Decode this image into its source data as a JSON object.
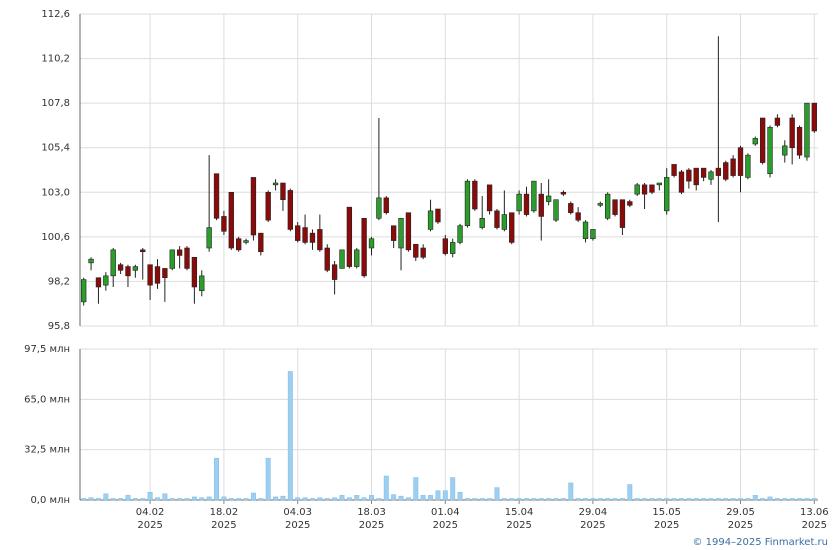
{
  "chart_data": {
    "type": "candlestick",
    "categories": [
      null,
      null,
      null,
      null,
      null,
      null,
      null,
      null,
      null,
      "04.02",
      null,
      null,
      null,
      null,
      null,
      null,
      null,
      null,
      null,
      "18.02",
      null,
      null,
      null,
      null,
      null,
      null,
      null,
      null,
      null,
      "04.03",
      null,
      null,
      null,
      null,
      null,
      null,
      null,
      null,
      null,
      "18.03",
      null,
      null,
      null,
      null,
      null,
      null,
      null,
      null,
      null,
      "01.04",
      null,
      null,
      null,
      null,
      null,
      null,
      null,
      null,
      null,
      "15.04",
      null,
      null,
      null,
      null,
      null,
      null,
      null,
      null,
      null,
      "29.04",
      null,
      null,
      null,
      null,
      null,
      null,
      null,
      null,
      null,
      "15.05",
      null,
      null,
      null,
      null,
      null,
      null,
      null,
      null,
      null,
      "29.05",
      null,
      null,
      null,
      null,
      null,
      null,
      null,
      null,
      null,
      "13.06"
    ],
    "year": "2025",
    "open": [
      97.1,
      99.2,
      98.4,
      98.0,
      98.5,
      99.1,
      99.0,
      98.8,
      99.9,
      99.1,
      99.0,
      98.9,
      98.9,
      99.9,
      100.0,
      99.5,
      97.7,
      100.0,
      104.0,
      101.7,
      103.0,
      100.5,
      100.3,
      103.8,
      100.8,
      103.0,
      103.4,
      103.5,
      103.1,
      101.2,
      101.1,
      100.8,
      101.0,
      100.0,
      99.1,
      98.9,
      102.2,
      99.0,
      101.6,
      100.0,
      101.6,
      102.7,
      101.2,
      100.0,
      101.9,
      100.2,
      100.0,
      101.0,
      102.1,
      100.5,
      99.7,
      100.3,
      101.2,
      103.6,
      101.1,
      103.4,
      102.0,
      101.0,
      101.9,
      102.0,
      102.9,
      102.0,
      102.9,
      102.5,
      101.5,
      103.0,
      102.4,
      101.9,
      100.5,
      100.5,
      102.3,
      101.6,
      102.6,
      102.6,
      102.5,
      102.9,
      103.4,
      103.4,
      103.4,
      102.0,
      104.5,
      104.1,
      104.2,
      104.3,
      104.3,
      103.7,
      104.3,
      104.6,
      104.8,
      105.4,
      103.8,
      105.6,
      107.0,
      104.0,
      107.0,
      105.0,
      107.0,
      106.5,
      104.9,
      107.8
    ],
    "high": [
      98.4,
      99.5,
      98.4,
      98.7,
      100.0,
      99.2,
      99.1,
      99.1,
      100.0,
      99.1,
      99.4,
      98.9,
      99.9,
      100.1,
      100.1,
      99.5,
      98.8,
      105.0,
      104.0,
      102.0,
      103.0,
      100.6,
      100.5,
      103.8,
      100.8,
      103.1,
      103.7,
      103.5,
      103.2,
      101.4,
      101.8,
      101.0,
      101.8,
      100.2,
      99.3,
      99.9,
      102.2,
      100.0,
      101.6,
      100.6,
      107.0,
      102.8,
      101.2,
      101.6,
      101.9,
      100.2,
      100.2,
      102.6,
      102.1,
      100.7,
      100.5,
      101.3,
      103.7,
      103.7,
      102.8,
      103.4,
      102.1,
      103.1,
      101.9,
      103.1,
      103.3,
      103.6,
      103.5,
      103.7,
      102.6,
      103.1,
      102.5,
      102.2,
      101.5,
      101.0,
      102.5,
      103.0,
      102.6,
      102.6,
      102.6,
      103.5,
      103.5,
      103.4,
      103.5,
      104.3,
      104.5,
      104.2,
      104.3,
      104.3,
      104.3,
      104.2,
      111.4,
      104.7,
      105.0,
      105.5,
      105.1,
      106.0,
      107.0,
      106.6,
      107.2,
      105.8,
      107.2,
      106.6,
      107.8,
      107.8
    ],
    "low": [
      96.9,
      98.8,
      97.0,
      97.7,
      97.9,
      98.6,
      97.9,
      98.4,
      98.3,
      97.2,
      97.8,
      97.1,
      98.8,
      98.9,
      98.8,
      97.0,
      97.4,
      99.8,
      101.5,
      100.7,
      99.9,
      99.8,
      100.2,
      100.4,
      99.6,
      101.4,
      103.1,
      102.0,
      100.9,
      100.3,
      100.2,
      99.9,
      99.8,
      98.7,
      97.5,
      98.9,
      98.9,
      98.9,
      98.4,
      99.6,
      101.5,
      101.8,
      100.0,
      98.8,
      99.8,
      99.3,
      99.4,
      100.9,
      101.3,
      99.6,
      99.5,
      100.2,
      101.1,
      102.0,
      101.0,
      101.8,
      101.0,
      100.9,
      100.2,
      101.8,
      101.7,
      101.9,
      100.4,
      102.3,
      101.4,
      102.8,
      101.8,
      101.4,
      100.3,
      100.4,
      102.2,
      101.5,
      101.7,
      100.7,
      102.2,
      102.8,
      102.1,
      102.9,
      103.1,
      101.8,
      103.8,
      102.9,
      103.2,
      103.1,
      103.6,
      103.4,
      101.4,
      103.6,
      103.8,
      103.0,
      103.7,
      105.5,
      104.5,
      103.8,
      106.5,
      104.6,
      104.5,
      104.8,
      104.7,
      106.2
    ],
    "close": [
      98.3,
      99.4,
      97.9,
      98.5,
      99.9,
      98.8,
      98.5,
      99.0,
      99.8,
      98.0,
      98.1,
      98.4,
      99.9,
      99.6,
      98.9,
      97.9,
      98.5,
      101.1,
      101.6,
      100.9,
      100.0,
      99.9,
      100.4,
      100.7,
      99.8,
      101.5,
      103.5,
      102.6,
      101.0,
      100.4,
      100.3,
      100.3,
      99.9,
      98.8,
      98.3,
      99.9,
      99.0,
      99.9,
      98.5,
      100.5,
      102.7,
      101.9,
      100.4,
      101.6,
      99.9,
      99.5,
      99.5,
      102.0,
      101.4,
      99.7,
      100.3,
      101.2,
      103.6,
      102.1,
      101.6,
      102.0,
      101.1,
      101.8,
      100.3,
      102.9,
      101.8,
      103.6,
      101.7,
      102.8,
      102.6,
      102.9,
      101.9,
      101.5,
      101.4,
      101.0,
      102.4,
      102.9,
      101.8,
      101.1,
      102.3,
      103.4,
      102.9,
      103.0,
      103.5,
      103.8,
      103.9,
      103.0,
      103.6,
      103.4,
      103.8,
      104.1,
      103.9,
      103.7,
      103.9,
      103.9,
      105.0,
      105.9,
      104.6,
      106.5,
      106.6,
      105.5,
      105.4,
      105.0,
      107.8,
      106.3
    ],
    "up_color": "#2a9d2a",
    "down_color": "#8b0a0a",
    "ylim": [
      95.8,
      112.6
    ],
    "yticks": [
      {
        "value": 95.8,
        "label": "95,8"
      },
      {
        "value": 98.2,
        "label": "98,2"
      },
      {
        "value": 100.6,
        "label": "100,6"
      },
      {
        "value": 103.0,
        "label": "103,0"
      },
      {
        "value": 105.4,
        "label": "105,4"
      },
      {
        "value": 107.8,
        "label": "107,8"
      },
      {
        "value": 110.2,
        "label": "110,2"
      },
      {
        "value": 112.6,
        "label": "112,6"
      }
    ],
    "grid": true,
    "volume": {
      "type": "bar",
      "values": [
        1,
        1.5,
        1,
        4,
        1,
        1,
        3,
        1,
        1,
        5,
        1.5,
        4,
        1,
        1,
        1,
        2,
        1.5,
        2,
        27,
        2,
        1,
        1,
        1,
        4.5,
        1,
        27,
        2,
        2.5,
        83,
        1.5,
        1.5,
        1,
        1.5,
        1,
        1.5,
        3,
        1.5,
        3,
        1.5,
        3,
        1,
        15.5,
        3.5,
        2.5,
        1.5,
        14.5,
        3,
        3,
        6,
        6,
        14.5,
        5,
        1,
        1,
        1,
        1,
        8,
        1,
        1,
        1,
        1,
        1,
        1,
        1,
        1,
        1,
        11,
        1,
        1,
        1,
        1,
        1,
        1,
        1,
        10,
        1,
        1,
        1,
        1,
        1,
        1,
        1,
        1,
        1,
        1,
        1,
        1,
        1,
        1,
        1,
        1,
        3,
        1,
        2,
        1,
        1,
        1,
        1,
        1,
        1
      ],
      "color": "#9ccff2",
      "ylim": [
        0,
        97.5
      ],
      "yticks": [
        {
          "value": 0,
          "label": "0,0 млн"
        },
        {
          "value": 32.5,
          "label": "32,5 млн"
        },
        {
          "value": 65,
          "label": "65,0 млн"
        },
        {
          "value": 97.5,
          "label": "97,5 млн"
        }
      ]
    }
  },
  "footer": "© 1994–2025 Finmarket.ru"
}
